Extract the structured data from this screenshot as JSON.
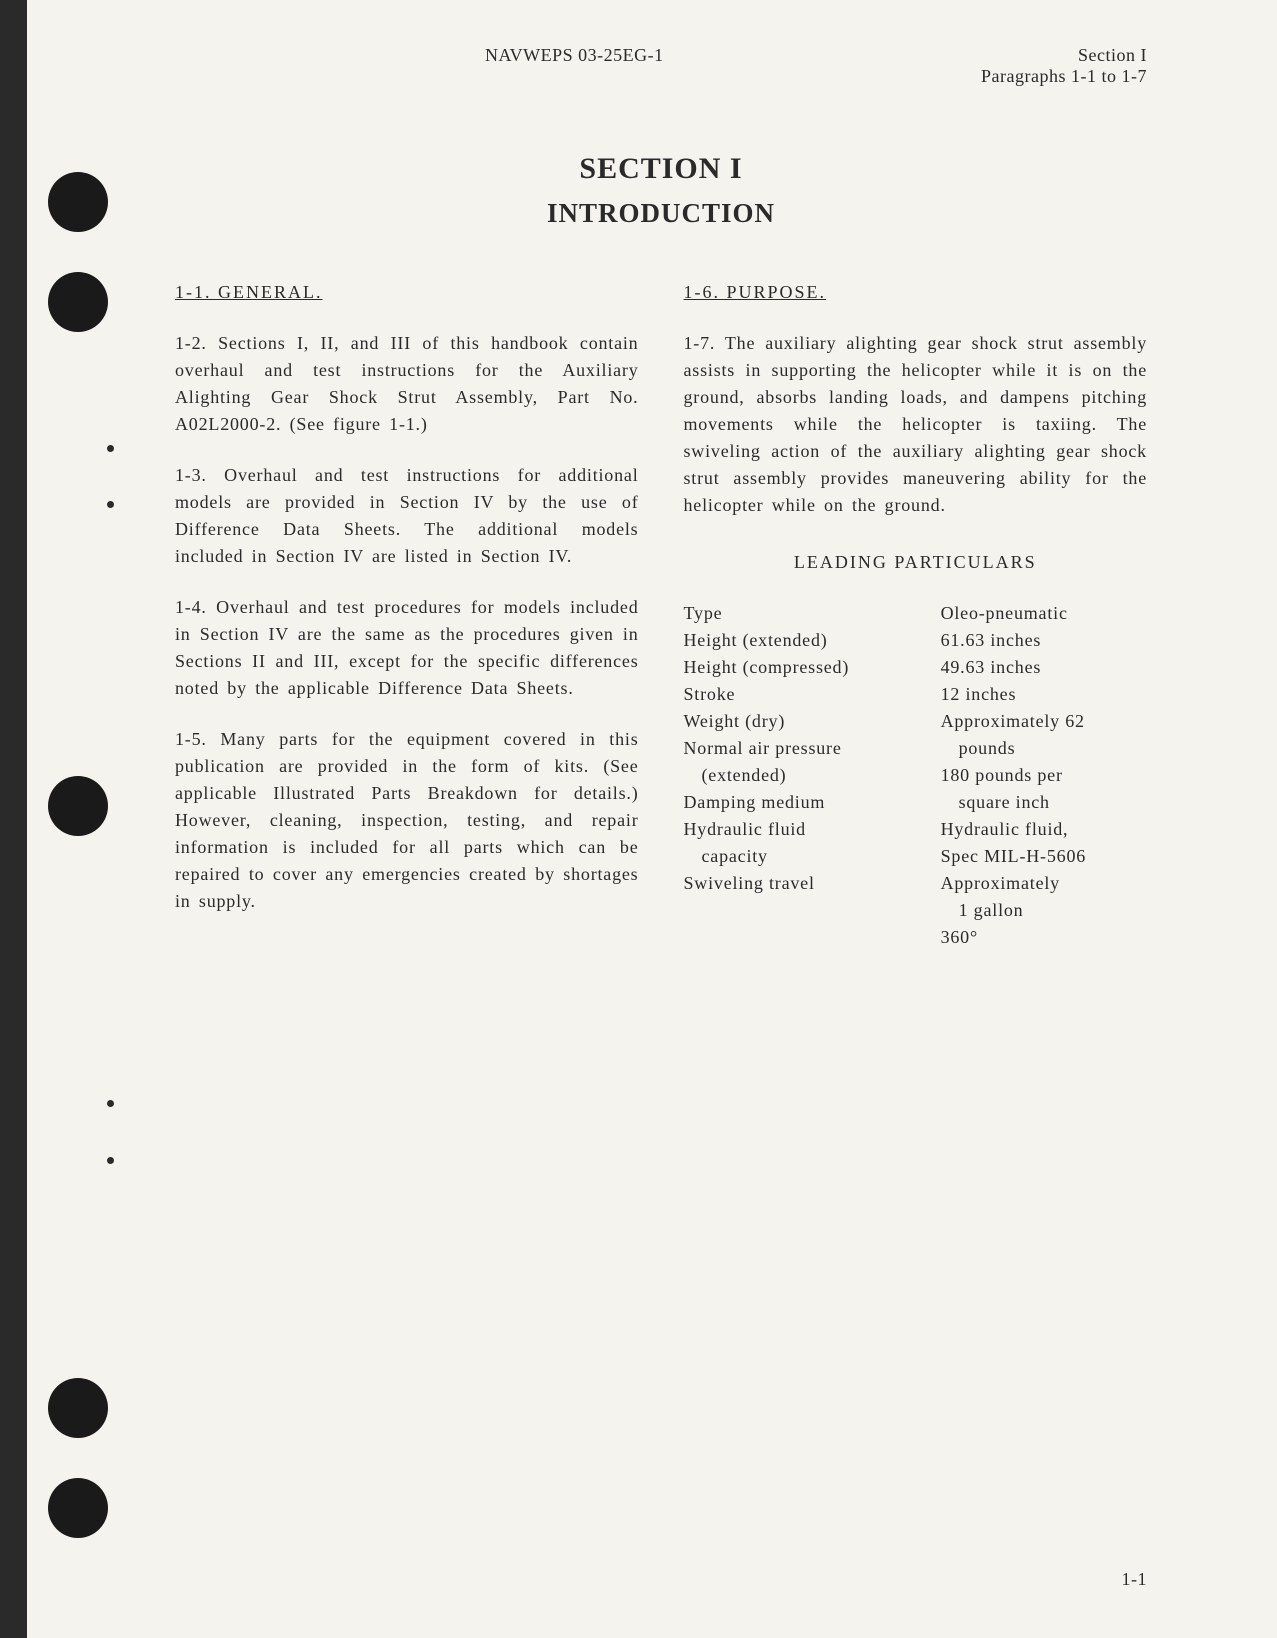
{
  "header": {
    "doc_number": "NAVWEPS 03-25EG-1",
    "section_label": "Section I",
    "paragraphs_label": "Paragraphs 1-1 to 1-7"
  },
  "title": {
    "line1": "SECTION I",
    "line2": "INTRODUCTION"
  },
  "left_column": {
    "heading": "1-1. GENERAL.",
    "para_1_2": "1-2. Sections I, II, and III of this handbook contain overhaul and test instructions for the Auxiliary Alighting Gear Shock Strut Assembly, Part No. A02L2000-2. (See figure 1-1.)",
    "para_1_3": "1-3. Overhaul and test instructions for additional models are provided in Section IV by the use of Difference Data Sheets. The additional models included in Section IV are listed in Section IV.",
    "para_1_4": "1-4. Overhaul and test procedures for models included in Section IV are the same as the procedures given in Sections II and III, except for the specific differences noted by the applicable Difference Data Sheets.",
    "para_1_5": "1-5. Many parts for the equipment covered in this publication are provided in the form of kits. (See applicable Illustrated Parts Breakdown for details.) However, cleaning, inspection, testing, and repair information is included for all parts which can be repaired to cover any emergencies created by shortages in supply."
  },
  "right_column": {
    "heading": "1-6. PURPOSE.",
    "para_1_7": "1-7. The auxiliary alighting gear shock strut assembly assists in supporting the helicopter while it is on the ground, absorbs landing loads, and dampens pitching movements while the helicopter is taxiing. The swiveling action of the auxiliary alighting gear shock strut assembly provides maneuvering ability for the helicopter while on the ground.",
    "particulars_heading": "LEADING PARTICULARS",
    "particulars": {
      "labels": {
        "type": "Type",
        "height_ext": "Height (extended)",
        "height_comp": "Height (compressed)",
        "stroke": "Stroke",
        "weight": "Weight (dry)",
        "weight_blank": " ",
        "air_pressure": "Normal air pressure",
        "air_pressure_sub": "(extended)",
        "damping": "Damping medium",
        "damping_blank": " ",
        "fluid_cap": "Hydraulic fluid",
        "fluid_cap_sub": "capacity",
        "swivel": "Swiveling travel"
      },
      "values": {
        "type": "Oleo-pneumatic",
        "height_ext": "61.63 inches",
        "height_comp": "49.63 inches",
        "stroke": "12 inches",
        "weight": "Approximately 62",
        "weight_sub": "pounds",
        "air_pressure": "180 pounds per",
        "air_pressure_sub": "square inch",
        "damping": "Hydraulic fluid,",
        "damping_sub": "Spec MIL-H-5606",
        "fluid_cap": "Approximately",
        "fluid_cap_sub": "1 gallon",
        "swivel": "360°"
      }
    }
  },
  "page_number": "1-1"
}
